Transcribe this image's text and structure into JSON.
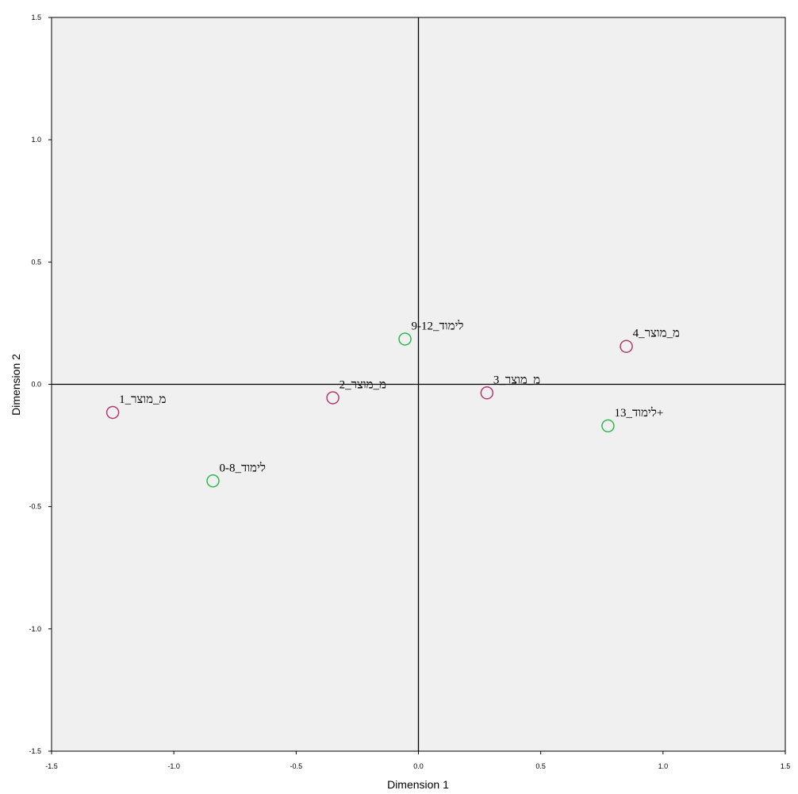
{
  "chart_data": {
    "type": "scatter",
    "xlabel": "Dimension 1",
    "ylabel": "Dimension 2",
    "xlim": [
      -1.5,
      1.5
    ],
    "ylim": [
      -1.5,
      1.5
    ],
    "x_ticks": [
      "-1.5",
      "-1.0",
      "-0.5",
      "0.0",
      "0.5",
      "1.0",
      "1.5"
    ],
    "y_ticks": [
      "1.5",
      "1.0",
      "0.5",
      "0.0",
      "-0.5",
      "-1.0",
      "-1.5"
    ],
    "grid": false,
    "reference_lines": {
      "x": 0,
      "y": 0
    },
    "series": [
      {
        "color": "#b23a6e",
        "points": [
          {
            "x": -1.25,
            "y": -0.115,
            "label": "מ_מוצר_1"
          },
          {
            "x": -0.35,
            "y": -0.055,
            "label": "מ_מוצר_2"
          },
          {
            "x": 0.28,
            "y": -0.035,
            "label": "מ_מוצר_3"
          },
          {
            "x": 0.85,
            "y": 0.155,
            "label": "מ_מוצר_4"
          }
        ]
      },
      {
        "color": "#2eb84a",
        "points": [
          {
            "x": -0.84,
            "y": -0.395,
            "label": "לימוד_0-8"
          },
          {
            "x": -0.055,
            "y": 0.185,
            "label": "לימוד_9-12"
          },
          {
            "x": 0.775,
            "y": -0.17,
            "label": "לימוד_13+"
          }
        ]
      }
    ]
  }
}
